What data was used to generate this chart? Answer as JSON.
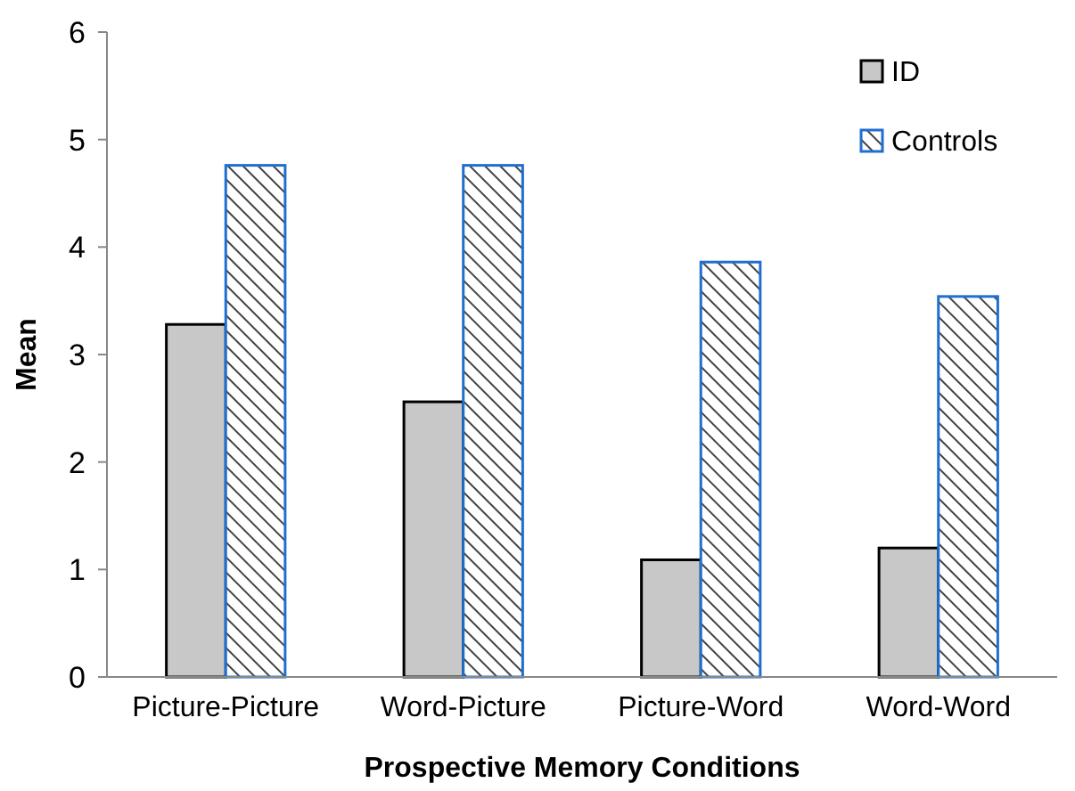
{
  "chart_data": {
    "type": "bar",
    "xlabel": "Prospective Memory Conditions",
    "ylabel": "Mean",
    "categories": [
      "Picture-Picture",
      "Word-Picture",
      "Picture-Word",
      "Word-Word"
    ],
    "series": [
      {
        "name": "ID",
        "color": "#c8c8c8",
        "values": [
          3.28,
          2.56,
          1.09,
          1.2
        ]
      },
      {
        "name": "Controls",
        "color": "#1f6fd0",
        "values": [
          4.76,
          4.76,
          3.86,
          3.54
        ]
      }
    ],
    "ylim": [
      0,
      6
    ],
    "yticks": [
      0,
      1,
      2,
      3,
      4,
      5,
      6
    ],
    "grid": false,
    "legend": "top right"
  }
}
